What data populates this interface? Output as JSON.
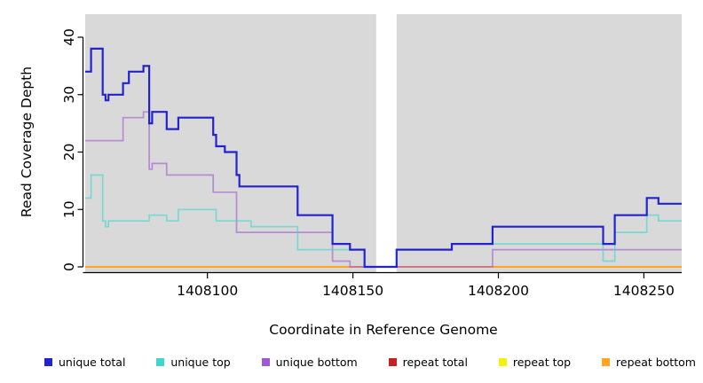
{
  "figure": {
    "ylabel": "Read Coverage Depth",
    "xlabel": "Coordinate in Reference Genome",
    "plot_bg_color": "#d9d9d9",
    "figure_bg_color": "#ffffff",
    "gap_band_color": "#ffffff"
  },
  "chart_data": {
    "type": "line",
    "subtype": "step-coverage",
    "title": "",
    "xlabel": "Coordinate in Reference Genome",
    "ylabel": "Read Coverage Depth",
    "x_range": [
      1408058,
      1408263
    ],
    "y_range": [
      0,
      44
    ],
    "x_ticks": [
      1408100,
      1408150,
      1408200,
      1408250
    ],
    "x_tick_labels": [
      "1408100",
      "1408150",
      "1408200",
      "1408250"
    ],
    "y_ticks": [
      0,
      10,
      20,
      30,
      40
    ],
    "y_tick_labels": [
      "0",
      "10",
      "20",
      "30",
      "40"
    ],
    "grid": false,
    "legend_position": "bottom",
    "gap_region": [
      1408158,
      1408165
    ],
    "series": [
      {
        "name": "repeat total",
        "color": "#c42222",
        "line_opacity": 1,
        "line_width": 1.5,
        "end": 1408263,
        "segments": [
          [
            1408058,
            0
          ]
        ]
      },
      {
        "name": "repeat top",
        "color": "#f2f20c",
        "line_opacity": 1,
        "line_width": 1.5,
        "end": 1408263,
        "segments": [
          [
            1408058,
            0
          ]
        ]
      },
      {
        "name": "repeat bottom",
        "color": "#ffa51e",
        "line_opacity": 1,
        "line_width": 2,
        "end": 1408263,
        "segments": [
          [
            1408058,
            0
          ]
        ]
      },
      {
        "name": "unique bottom",
        "color": "#a05ad0",
        "line_opacity": 0.62,
        "line_width": 1.7,
        "end": 1408263,
        "segments": [
          [
            1408058,
            22
          ],
          [
            1408071,
            26
          ],
          [
            1408078,
            27
          ],
          [
            1408080,
            17
          ],
          [
            1408081,
            18
          ],
          [
            1408086,
            16
          ],
          [
            1408102,
            13
          ],
          [
            1408110,
            6
          ],
          [
            1408143,
            1
          ],
          [
            1408149,
            0
          ],
          [
            1408198,
            3
          ]
        ]
      },
      {
        "name": "unique top",
        "color": "#3fd6ce",
        "line_opacity": 0.62,
        "line_width": 1.7,
        "end": 1408263,
        "segments": [
          [
            1408058,
            12
          ],
          [
            1408060,
            16
          ],
          [
            1408064,
            8
          ],
          [
            1408065,
            7
          ],
          [
            1408066,
            8
          ],
          [
            1408080,
            9
          ],
          [
            1408086,
            8
          ],
          [
            1408090,
            10
          ],
          [
            1408103,
            8
          ],
          [
            1408115,
            7
          ],
          [
            1408131,
            3
          ],
          [
            1408154,
            0
          ],
          [
            1408165,
            3
          ],
          [
            1408184,
            4
          ],
          [
            1408236,
            1
          ],
          [
            1408240,
            6
          ],
          [
            1408251,
            9
          ],
          [
            1408255,
            8
          ]
        ]
      },
      {
        "name": "unique total",
        "color": "#2323ce",
        "line_opacity": 1,
        "line_width": 2.2,
        "end": 1408263,
        "segments": [
          [
            1408058,
            34
          ],
          [
            1408060,
            38
          ],
          [
            1408064,
            30
          ],
          [
            1408065,
            29
          ],
          [
            1408066,
            30
          ],
          [
            1408071,
            32
          ],
          [
            1408073,
            34
          ],
          [
            1408078,
            35
          ],
          [
            1408080,
            25
          ],
          [
            1408081,
            27
          ],
          [
            1408086,
            24
          ],
          [
            1408090,
            26
          ],
          [
            1408102,
            23
          ],
          [
            1408103,
            21
          ],
          [
            1408106,
            20
          ],
          [
            1408110,
            16
          ],
          [
            1408111,
            14
          ],
          [
            1408131,
            9
          ],
          [
            1408143,
            4
          ],
          [
            1408149,
            3
          ],
          [
            1408154,
            0
          ],
          [
            1408165,
            3
          ],
          [
            1408184,
            4
          ],
          [
            1408198,
            7
          ],
          [
            1408236,
            4
          ],
          [
            1408240,
            9
          ],
          [
            1408251,
            12
          ],
          [
            1408255,
            11
          ]
        ]
      }
    ],
    "legend": [
      {
        "label": "unique total",
        "color": "#2323ce"
      },
      {
        "label": "unique top",
        "color": "#3fd6ce"
      },
      {
        "label": "unique bottom",
        "color": "#a05ad0"
      },
      {
        "label": "repeat total",
        "color": "#c42222"
      },
      {
        "label": "repeat top",
        "color": "#f2f20c"
      },
      {
        "label": "repeat bottom",
        "color": "#ffa51e"
      }
    ]
  }
}
